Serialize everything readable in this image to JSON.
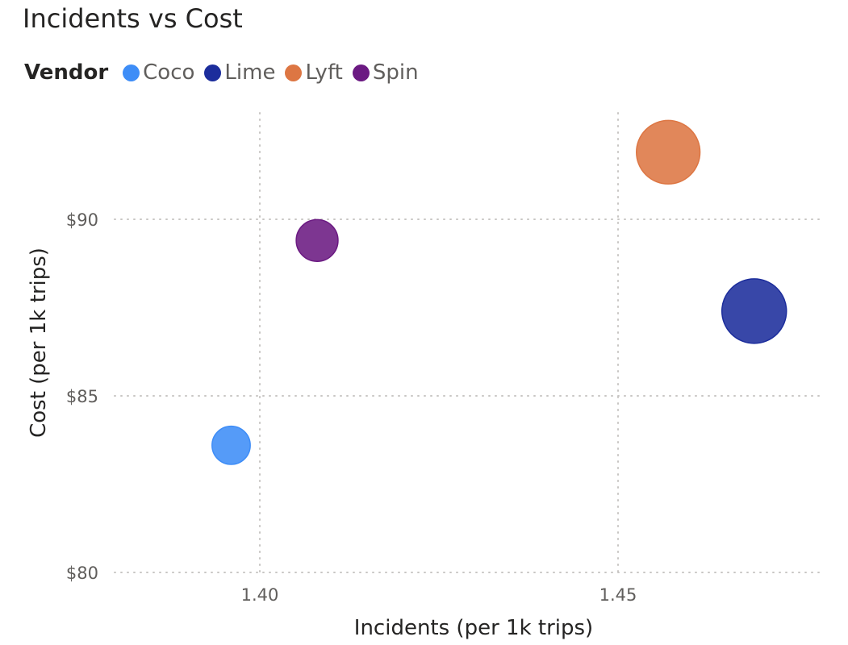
{
  "chart_data": {
    "type": "scatter",
    "title": "Incidents vs Cost",
    "xlabel": "Incidents (per 1k trips)",
    "ylabel": "Cost (per 1k trips)",
    "legend_title": "Vendor",
    "legend_position": "top-left",
    "grid": true,
    "xlim": [
      1.38,
      1.48
    ],
    "ylim": [
      80,
      93.5
    ],
    "x_ticks": [
      1.4,
      1.45
    ],
    "x_tick_labels": [
      "1.40",
      "1.45"
    ],
    "y_ticks": [
      80,
      85,
      90
    ],
    "y_tick_labels": [
      "$80",
      "$85",
      "$90"
    ],
    "series": [
      {
        "name": "Coco",
        "color": "#3E8DF7",
        "x": 1.396,
        "y": 83.6,
        "size": 0.35
      },
      {
        "name": "Lime",
        "color": "#1C2D9C",
        "x": 1.469,
        "y": 87.4,
        "size": 1.0
      },
      {
        "name": "Lyft",
        "color": "#DD7643",
        "x": 1.457,
        "y": 91.9,
        "size": 0.97
      },
      {
        "name": "Spin",
        "color": "#6B1A82",
        "x": 1.408,
        "y": 89.4,
        "size": 0.42
      }
    ]
  }
}
